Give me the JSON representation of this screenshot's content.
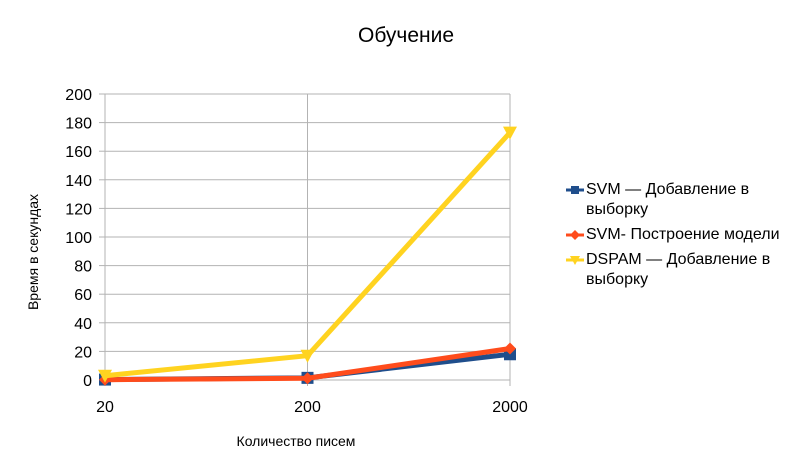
{
  "chart_data": {
    "type": "line",
    "title": "Обучение",
    "xlabel": "Количество писем",
    "ylabel": "Время в секундах",
    "categories": [
      "20",
      "200",
      "2000"
    ],
    "ylim": [
      0,
      200
    ],
    "yticks": [
      0,
      20,
      40,
      60,
      80,
      100,
      120,
      140,
      160,
      180,
      200
    ],
    "grid": true,
    "legend_position": "right",
    "series": [
      {
        "name": "SVM — Добавление в выборку",
        "values": [
          0.3,
          1.5,
          18
        ],
        "color": "#1f4e8c",
        "marker": "square"
      },
      {
        "name": "SVM- Построение модели",
        "values": [
          0.2,
          1.2,
          22
        ],
        "color": "#ff4c1c",
        "marker": "diamond"
      },
      {
        "name": "DSPAM — Добавление в выборку",
        "values": [
          3,
          17,
          173
        ],
        "color": "#ffd320",
        "marker": "triangle-down"
      }
    ]
  }
}
